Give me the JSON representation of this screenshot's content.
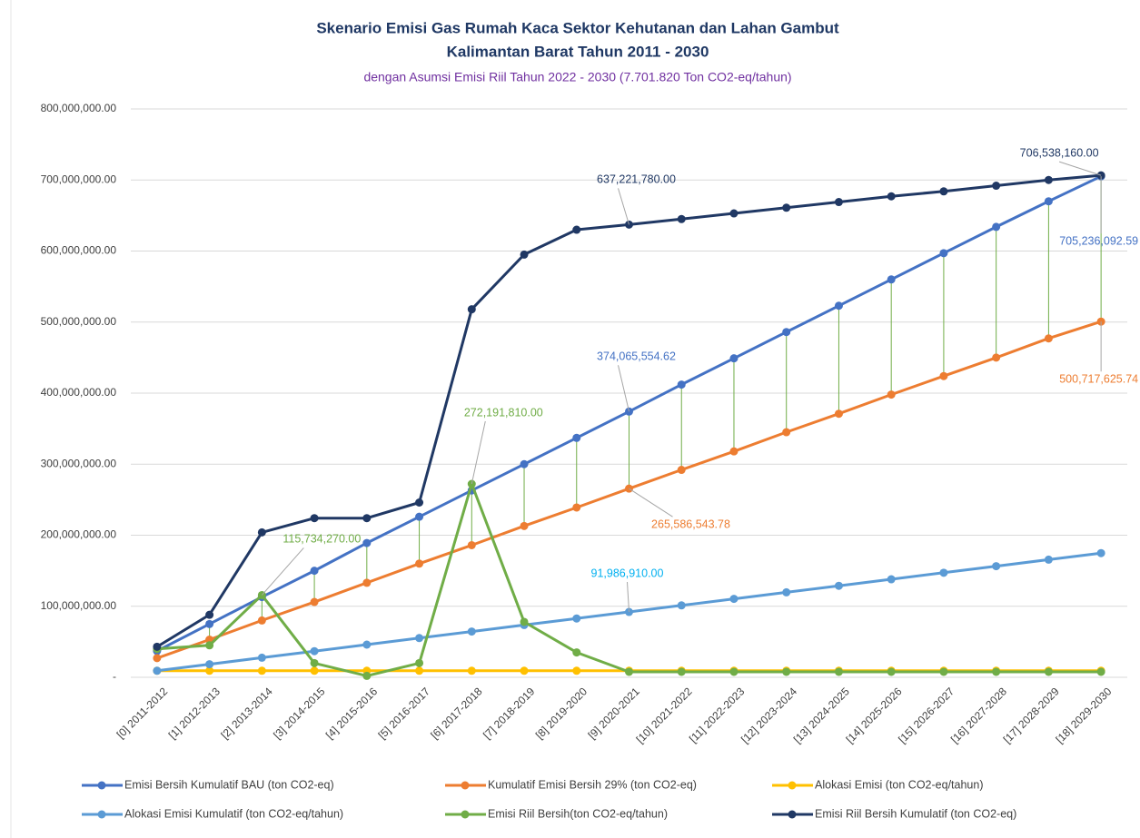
{
  "chart_data": {
    "type": "line",
    "title": [
      "Skenario Emisi Gas Rumah Kaca Sektor Kehutanan dan Lahan Gambut",
      "Kalimantan Barat Tahun 2011 - 2030"
    ],
    "subtitle": "dengan Asumsi Emisi Riil Tahun 2022 - 2030 (7.701.820 Ton CO2-eq/tahun)",
    "categories": [
      "[0] 2011-2012",
      "[1] 2012-2013",
      "[2] 2013-2014",
      "[3] 2014-2015",
      "[4] 2015-2016",
      "[5] 2016-2017",
      "[6] 2017-2018",
      "[7] 2018-2019",
      "[8] 2019-2020",
      "[9] 2020-2021",
      "[10] 2021-2022",
      "[11] 2022-2023",
      "[12] 2023-2024",
      "[13] 2024-2025",
      "[14] 2025-2026",
      "[15] 2026-2027",
      "[16] 2027-2028",
      "[17] 2028-2029",
      "[18] 2029-2030"
    ],
    "ylim": [
      0,
      800000000
    ],
    "yticks": [
      {
        "value": 0,
        "label": "-"
      },
      {
        "value": 100000000,
        "label": "100,000,000.00"
      },
      {
        "value": 200000000,
        "label": "200,000,000.00"
      },
      {
        "value": 300000000,
        "label": "300,000,000.00"
      },
      {
        "value": 400000000,
        "label": "400,000,000.00"
      },
      {
        "value": 500000000,
        "label": "500,000,000.00"
      },
      {
        "value": 600000000,
        "label": "600,000,000.00"
      },
      {
        "value": 700000000,
        "label": "700,000,000.00"
      },
      {
        "value": 800000000,
        "label": "800,000,000.00"
      }
    ],
    "grid": true,
    "legend": "bottom",
    "series": [
      {
        "name": "Emisi Bersih Kumulatif BAU (ton CO2-eq)",
        "color": "#4472c4",
        "values": [
          37000000,
          75000000,
          113000000,
          150000000,
          189000000,
          226000000,
          263000000,
          300000000,
          337000000,
          374065554.62,
          412000000,
          449000000,
          486000000,
          523000000,
          560000000,
          597000000,
          634000000,
          670000000,
          705236092.59
        ],
        "value_labels": [
          null,
          null,
          null,
          null,
          null,
          null,
          null,
          null,
          null,
          "374,065,554.62",
          null,
          null,
          null,
          null,
          null,
          null,
          null,
          null,
          "705,236,092.59"
        ]
      },
      {
        "name": "Kumulatif Emisi Bersih 29% (ton CO2-eq)",
        "color": "#ed7d31",
        "values": [
          27000000,
          53000000,
          80000000,
          106000000,
          133000000,
          160000000,
          186000000,
          213000000,
          239000000,
          265586543.78,
          292000000,
          318000000,
          345000000,
          371000000,
          398000000,
          424000000,
          450000000,
          477000000,
          500717625.74
        ],
        "value_labels": [
          null,
          null,
          null,
          null,
          null,
          null,
          null,
          null,
          null,
          "265,586,543.78",
          null,
          null,
          null,
          null,
          null,
          null,
          null,
          null,
          "500,717,625.74"
        ]
      },
      {
        "name": "Alokasi Emisi (ton CO2-eq/tahun)",
        "color": "#ffc000",
        "values": [
          9200000,
          9200000,
          9200000,
          9200000,
          9200000,
          9200000,
          9200000,
          9200000,
          9200000,
          9200000,
          9200000,
          9200000,
          9200000,
          9200000,
          9200000,
          9200000,
          9200000,
          9200000,
          9200000
        ]
      },
      {
        "name": "Alokasi Emisi Kumulatif (ton CO2-eq/tahun)",
        "color": "#5b9bd5",
        "values": [
          9200000,
          18400000,
          27600000,
          36800000,
          46000000,
          55200000,
          64400000,
          73600000,
          82800000,
          91986910,
          101200000,
          110400000,
          119600000,
          128800000,
          138000000,
          147200000,
          156400000,
          165600000,
          174800000
        ],
        "value_labels": [
          null,
          null,
          null,
          null,
          null,
          null,
          null,
          null,
          null,
          "91,986,910.00",
          null,
          null,
          null,
          null,
          null,
          null,
          null,
          null,
          null
        ]
      },
      {
        "name": "Emisi Riil Bersih(ton CO2-eq/tahun)",
        "color": "#70ad47",
        "values": [
          40000000,
          45000000,
          115734270,
          20000000,
          2000000,
          20000000,
          272191810,
          78000000,
          35000000,
          7701820,
          7701820,
          7701820,
          7701820,
          7701820,
          7701820,
          7701820,
          7701820,
          7701820,
          7701820
        ],
        "value_labels": [
          null,
          null,
          "115,734,270.00",
          null,
          null,
          null,
          "272,191,810.00",
          null,
          null,
          null,
          null,
          null,
          null,
          null,
          null,
          null,
          null,
          null,
          null
        ]
      },
      {
        "name": "Emisi Riil Bersih Kumulatif (ton CO2-eq)",
        "color": "#203864",
        "values": [
          43000000,
          88000000,
          204000000,
          224000000,
          224000000,
          246000000,
          518000000,
          595000000,
          630000000,
          637221780,
          645000000,
          653000000,
          661000000,
          669000000,
          677000000,
          684000000,
          692000000,
          700000000,
          706538160
        ],
        "value_labels": [
          null,
          null,
          null,
          null,
          null,
          null,
          null,
          null,
          null,
          "637,221,780.00",
          null,
          null,
          null,
          null,
          null,
          null,
          null,
          null,
          "706,538,160.00"
        ]
      }
    ]
  }
}
